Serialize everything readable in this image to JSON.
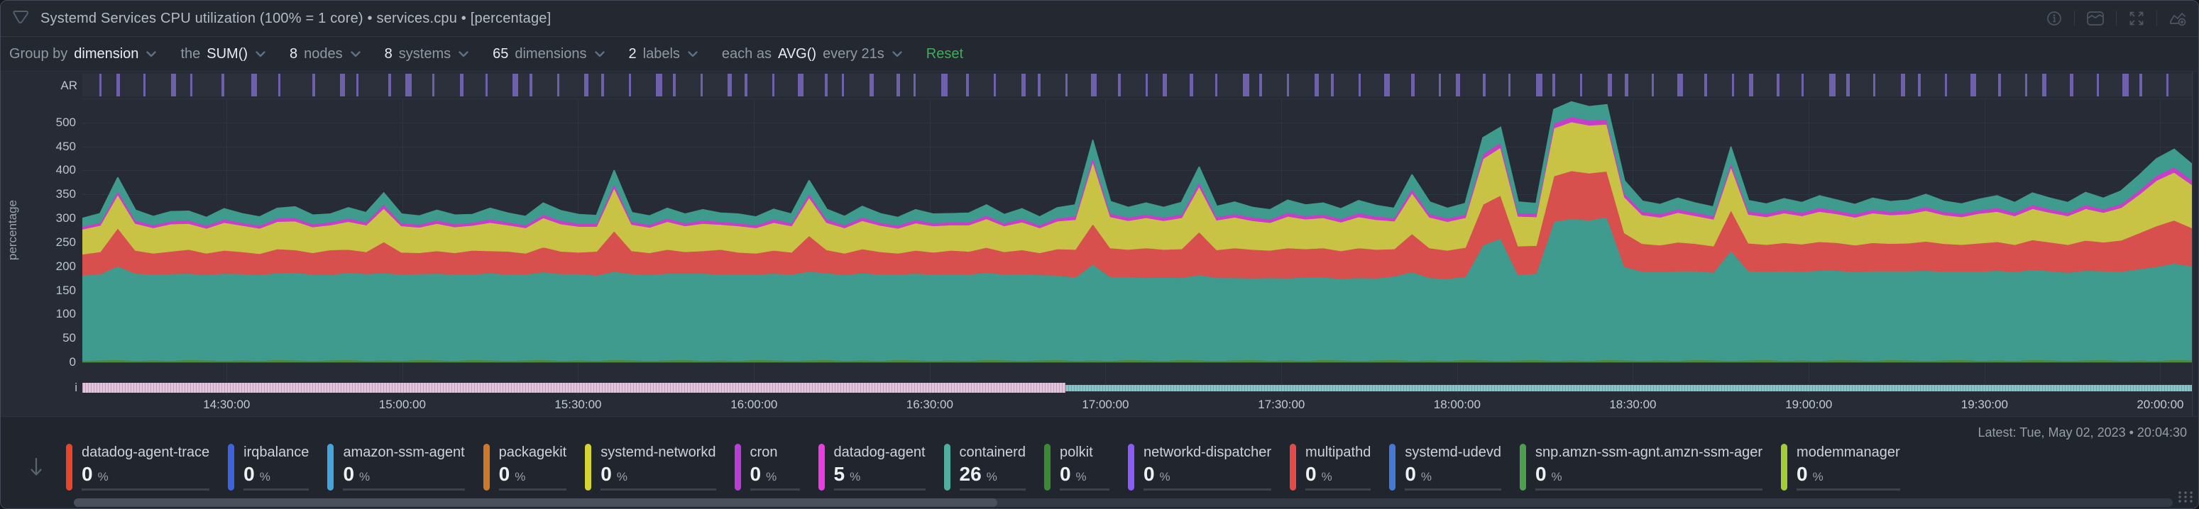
{
  "header": {
    "title": "Systemd Services CPU utilization (100% = 1 core) • services.cpu • [percentage]",
    "icons": [
      "netdata-logo",
      "info",
      "stacked-area",
      "fullscreen",
      "add-chart"
    ]
  },
  "toolbar": {
    "controls": [
      {
        "prefix": "Group by",
        "value": "dimension",
        "suffix": ""
      },
      {
        "prefix": "the",
        "value": "SUM()",
        "suffix": ""
      },
      {
        "prefix": "",
        "value": "8",
        "suffix": "nodes"
      },
      {
        "prefix": "",
        "value": "8",
        "suffix": "systems"
      },
      {
        "prefix": "",
        "value": "65",
        "suffix": "dimensions"
      },
      {
        "prefix": "",
        "value": "2",
        "suffix": "labels"
      },
      {
        "prefix": "each as",
        "value": "AVG()",
        "suffix": "every 21s"
      }
    ],
    "reset_label": "Reset"
  },
  "chart": {
    "ar_label": "AR",
    "info_label": "i",
    "y_axis_label": "percentage",
    "y_ticks": [
      500,
      450,
      400,
      350,
      300,
      250,
      200,
      150,
      100,
      50,
      0
    ],
    "y_grid": [
      550,
      500,
      450,
      400,
      350,
      300,
      250,
      200,
      150,
      100,
      50,
      0
    ],
    "x_ticks": [
      {
        "p": 6.84,
        "label": "14:30:00"
      },
      {
        "p": 15.17,
        "label": "15:00:00"
      },
      {
        "p": 23.5,
        "label": "15:30:00"
      },
      {
        "p": 31.84,
        "label": "16:00:00"
      },
      {
        "p": 40.17,
        "label": "16:30:00"
      },
      {
        "p": 48.5,
        "label": "17:00:00"
      },
      {
        "p": 56.84,
        "label": "17:30:00"
      },
      {
        "p": 65.17,
        "label": "18:00:00"
      },
      {
        "p": 73.5,
        "label": "18:30:00"
      },
      {
        "p": 81.84,
        "label": "19:00:00"
      },
      {
        "p": 90.17,
        "label": "19:30:00"
      },
      {
        "p": 98.5,
        "label": "20:00:00"
      }
    ],
    "info_bars": [
      {
        "name": "info-ribbon-pink",
        "color": "#e4c3e0",
        "width_pct": 46.6
      },
      {
        "name": "info-ribbon-cyan",
        "color": "#8ac6c9",
        "width_pct": 53.4
      }
    ],
    "colors": {
      "anomaly_bar": "#6e60aa",
      "grid": "#2e3542",
      "zero_line": "#3a4250"
    }
  },
  "chart_data": {
    "type": "stacked-area",
    "title": "Systemd Services CPU utilization",
    "unit": "percentage",
    "ylim": [
      0,
      550
    ],
    "x_start": "14:04:30",
    "x_end": "20:04:30",
    "legend_position": "bottom",
    "series": [
      {
        "name": "polkit",
        "color": "#4e8a3c",
        "values": [
          3,
          4,
          5,
          3,
          4,
          3,
          5,
          4,
          3,
          4,
          3,
          5,
          4,
          3,
          4,
          5,
          3,
          4,
          3,
          5,
          4,
          3,
          5,
          4,
          3,
          4,
          5,
          3,
          4,
          3,
          5,
          4,
          3,
          4,
          5,
          3,
          4,
          3,
          5,
          4,
          3,
          4,
          5,
          3,
          4,
          3,
          5,
          4,
          3,
          4,
          3,
          5,
          4,
          3,
          4,
          5,
          3,
          4,
          3,
          5,
          4,
          3,
          5,
          4,
          3,
          4,
          5,
          3,
          4,
          3,
          5,
          4,
          3,
          4,
          5,
          3,
          4,
          3,
          5,
          4,
          3,
          4,
          5,
          3,
          4,
          3,
          5,
          4,
          3,
          4,
          3,
          5,
          4,
          3,
          4,
          5,
          3,
          4,
          3,
          5,
          4,
          3,
          5,
          4,
          3,
          4,
          5,
          3,
          4,
          3,
          5,
          4,
          3,
          4,
          5,
          3,
          4,
          3,
          5,
          4
        ]
      },
      {
        "name": "containerd",
        "color": "#3f9b8d",
        "values": [
          178,
          180,
          195,
          182,
          179,
          181,
          180,
          178,
          182,
          180,
          179,
          181,
          183,
          180,
          178,
          182,
          181,
          182,
          180,
          179,
          181,
          180,
          178,
          182,
          180,
          179,
          183,
          181,
          180,
          178,
          184,
          180,
          179,
          181,
          180,
          182,
          179,
          180,
          178,
          181,
          180,
          185,
          181,
          179,
          182,
          180,
          178,
          181,
          180,
          179,
          180,
          182,
          179,
          181,
          178,
          176,
          174,
          200,
          175,
          173,
          172,
          174,
          171,
          178,
          173,
          172,
          170,
          173,
          171,
          174,
          172,
          170,
          173,
          171,
          174,
          185,
          172,
          171,
          173,
          240,
          255,
          178,
          180,
          290,
          295,
          293,
          298,
          195,
          186,
          184,
          187,
          185,
          183,
          230,
          186,
          184,
          187,
          185,
          188,
          186,
          184,
          187,
          185,
          186,
          188,
          185,
          184,
          186,
          187,
          185,
          188,
          186,
          184,
          187,
          185,
          186,
          190,
          196,
          201,
          196
        ]
      },
      {
        "name": "datadog-agent-trace",
        "color": "#d7504d",
        "values": [
          44,
          46,
          80,
          48,
          44,
          47,
          50,
          45,
          48,
          46,
          44,
          50,
          47,
          45,
          52,
          48,
          46,
          65,
          46,
          44,
          47,
          45,
          50,
          46,
          48,
          44,
          52,
          47,
          45,
          50,
          85,
          48,
          46,
          50,
          45,
          47,
          52,
          46,
          44,
          48,
          46,
          75,
          48,
          45,
          50,
          47,
          44,
          48,
          46,
          50,
          48,
          52,
          47,
          50,
          46,
          55,
          58,
          85,
          60,
          57,
          62,
          58,
          60,
          90,
          58,
          62,
          60,
          57,
          63,
          59,
          61,
          58,
          62,
          60,
          57,
          80,
          62,
          59,
          61,
          85,
          90,
          60,
          58,
          95,
          100,
          98,
          95,
          70,
          58,
          56,
          60,
          57,
          55,
          85,
          58,
          56,
          59,
          57,
          60,
          58,
          56,
          59,
          57,
          58,
          61,
          58,
          56,
          59,
          60,
          57,
          62,
          60,
          58,
          63,
          60,
          65,
          75,
          85,
          90,
          80
        ]
      },
      {
        "name": "systemd-networkd",
        "color": "#c8c345",
        "values": [
          52,
          55,
          70,
          56,
          53,
          57,
          54,
          52,
          58,
          55,
          53,
          57,
          60,
          54,
          52,
          58,
          56,
          70,
          55,
          53,
          57,
          54,
          52,
          59,
          55,
          53,
          61,
          57,
          54,
          52,
          90,
          55,
          53,
          58,
          54,
          57,
          52,
          55,
          53,
          58,
          55,
          80,
          57,
          53,
          59,
          55,
          52,
          57,
          55,
          53,
          55,
          60,
          54,
          58,
          52,
          58,
          62,
          130,
          65,
          60,
          63,
          60,
          65,
          95,
          62,
          64,
          60,
          58,
          66,
          62,
          63,
          60,
          65,
          62,
          58,
          85,
          64,
          60,
          62,
          95,
          100,
          62,
          60,
          100,
          102,
          100,
          98,
          75,
          60,
          58,
          62,
          58,
          56,
          90,
          60,
          58,
          62,
          59,
          63,
          60,
          58,
          62,
          60,
          61,
          64,
          60,
          58,
          62,
          63,
          60,
          65,
          62,
          60,
          66,
          62,
          68,
          80,
          95,
          100,
          90
        ]
      },
      {
        "name": "datadog-agent",
        "color": "#c93ec9",
        "values": [
          6,
          6,
          8,
          7,
          6,
          6,
          7,
          6,
          7,
          6,
          6,
          7,
          7,
          6,
          6,
          7,
          6,
          9,
          6,
          6,
          7,
          6,
          6,
          7,
          6,
          6,
          7,
          7,
          6,
          6,
          9,
          6,
          6,
          7,
          6,
          7,
          6,
          6,
          6,
          7,
          6,
          8,
          7,
          6,
          7,
          6,
          6,
          7,
          6,
          6,
          6,
          7,
          6,
          7,
          6,
          7,
          7,
          10,
          7,
          7,
          7,
          7,
          7,
          9,
          7,
          7,
          7,
          7,
          8,
          7,
          7,
          7,
          8,
          7,
          7,
          9,
          7,
          7,
          7,
          10,
          10,
          7,
          7,
          10,
          11,
          10,
          10,
          8,
          7,
          7,
          7,
          7,
          7,
          9,
          7,
          7,
          7,
          7,
          8,
          7,
          7,
          7,
          7,
          7,
          8,
          7,
          7,
          7,
          8,
          7,
          8,
          7,
          7,
          8,
          7,
          8,
          9,
          10,
          11,
          10
        ]
      },
      {
        "name": "amazon-ssm-agent",
        "color": "#3f9b8d",
        "values": [
          18,
          20,
          28,
          22,
          19,
          21,
          20,
          18,
          23,
          20,
          19,
          22,
          24,
          20,
          18,
          23,
          21,
          24,
          20,
          19,
          22,
          20,
          18,
          24,
          20,
          19,
          25,
          22,
          20,
          18,
          28,
          20,
          19,
          22,
          20,
          23,
          19,
          20,
          18,
          22,
          20,
          28,
          22,
          19,
          24,
          20,
          18,
          22,
          20,
          19,
          20,
          23,
          19,
          22,
          18,
          22,
          25,
          35,
          26,
          22,
          25,
          22,
          26,
          32,
          23,
          26,
          22,
          21,
          27,
          24,
          25,
          22,
          27,
          24,
          21,
          30,
          26,
          22,
          24,
          35,
          33,
          24,
          22,
          30,
          32,
          30,
          32,
          27,
          23,
          21,
          24,
          21,
          20,
          33,
          23,
          21,
          24,
          22,
          26,
          23,
          21,
          25,
          22,
          23,
          27,
          23,
          21,
          24,
          26,
          22,
          26,
          24,
          22,
          27,
          24,
          28,
          32,
          36,
          38,
          34
        ]
      }
    ],
    "anomaly_bars": [
      [
        0.8,
        3
      ],
      [
        1.6,
        5
      ],
      [
        2.9,
        3
      ],
      [
        4.2,
        7
      ],
      [
        5.1,
        3
      ],
      [
        6.6,
        4
      ],
      [
        8.0,
        8
      ],
      [
        9.3,
        3
      ],
      [
        10.9,
        4
      ],
      [
        12.2,
        7
      ],
      [
        13.0,
        3
      ],
      [
        14.5,
        4
      ],
      [
        15.3,
        9
      ],
      [
        16.6,
        3
      ],
      [
        17.9,
        5
      ],
      [
        19.1,
        3
      ],
      [
        20.4,
        8
      ],
      [
        21.2,
        4
      ],
      [
        22.5,
        3
      ],
      [
        23.8,
        6
      ],
      [
        24.6,
        4
      ],
      [
        25.9,
        3
      ],
      [
        27.2,
        9
      ],
      [
        28.0,
        4
      ],
      [
        29.3,
        3
      ],
      [
        30.6,
        6
      ],
      [
        31.4,
        4
      ],
      [
        32.7,
        3
      ],
      [
        33.9,
        8
      ],
      [
        35.2,
        4
      ],
      [
        36.0,
        3
      ],
      [
        37.3,
        6
      ],
      [
        38.6,
        5
      ],
      [
        39.4,
        3
      ],
      [
        40.7,
        9
      ],
      [
        41.9,
        4
      ],
      [
        43.2,
        3
      ],
      [
        44.5,
        6
      ],
      [
        45.3,
        4
      ],
      [
        46.6,
        3
      ],
      [
        47.8,
        8
      ],
      [
        49.1,
        4
      ],
      [
        50.4,
        3
      ],
      [
        51.2,
        6
      ],
      [
        52.5,
        5
      ],
      [
        53.7,
        3
      ],
      [
        55.0,
        9
      ],
      [
        55.8,
        4
      ],
      [
        57.1,
        3
      ],
      [
        58.4,
        6
      ],
      [
        59.2,
        4
      ],
      [
        60.5,
        3
      ],
      [
        61.7,
        8
      ],
      [
        63.0,
        5
      ],
      [
        64.3,
        3
      ],
      [
        65.1,
        6
      ],
      [
        66.4,
        4
      ],
      [
        67.6,
        3
      ],
      [
        68.9,
        9
      ],
      [
        69.7,
        4
      ],
      [
        71.0,
        3
      ],
      [
        72.3,
        6
      ],
      [
        73.1,
        5
      ],
      [
        74.4,
        3
      ],
      [
        75.6,
        8
      ],
      [
        76.9,
        4
      ],
      [
        78.2,
        3
      ],
      [
        79.0,
        6
      ],
      [
        80.3,
        4
      ],
      [
        81.5,
        3
      ],
      [
        82.8,
        9
      ],
      [
        83.6,
        5
      ],
      [
        84.9,
        3
      ],
      [
        86.2,
        6
      ],
      [
        87.0,
        4
      ],
      [
        88.3,
        3
      ],
      [
        89.5,
        8
      ],
      [
        90.8,
        4
      ],
      [
        92.1,
        3
      ],
      [
        92.9,
        6
      ],
      [
        94.2,
        5
      ],
      [
        95.5,
        3
      ],
      [
        96.7,
        9
      ],
      [
        97.5,
        4
      ],
      [
        98.8,
        3
      ]
    ]
  },
  "footer": {
    "latest": "Latest: Tue, May 02, 2023 • 20:04:30",
    "scroll_thumb_pct": 44
  },
  "legend": {
    "items": [
      {
        "name": "datadog-agent-trace",
        "value": "0",
        "unit": "%",
        "color": "#e8452c"
      },
      {
        "name": "irqbalance",
        "value": "0",
        "unit": "%",
        "color": "#3e63dd"
      },
      {
        "name": "amazon-ssm-agent",
        "value": "0",
        "unit": "%",
        "color": "#46a4da"
      },
      {
        "name": "packagekit",
        "value": "0",
        "unit": "%",
        "color": "#cc7a29"
      },
      {
        "name": "systemd-networkd",
        "value": "0",
        "unit": "%",
        "color": "#d6d334"
      },
      {
        "name": "cron",
        "value": "0",
        "unit": "%",
        "color": "#b93fd4"
      },
      {
        "name": "datadog-agent",
        "value": "5",
        "unit": "%",
        "color": "#e93fe0"
      },
      {
        "name": "containerd",
        "value": "26",
        "unit": "%",
        "color": "#4fae9d"
      },
      {
        "name": "polkit",
        "value": "0",
        "unit": "%",
        "color": "#3a8a33"
      },
      {
        "name": "networkd-dispatcher",
        "value": "0",
        "unit": "%",
        "color": "#8b5cf6"
      },
      {
        "name": "multipathd",
        "value": "0",
        "unit": "%",
        "color": "#e44a4a"
      },
      {
        "name": "systemd-udevd",
        "value": "0",
        "unit": "%",
        "color": "#4479d4"
      },
      {
        "name": "snp.amzn-ssm-agnt.amzn-ssm-ager",
        "value": "0",
        "unit": "%",
        "color": "#4e9e50"
      },
      {
        "name": "modemmanager",
        "value": "0",
        "unit": "%",
        "color": "#a3cc39"
      }
    ]
  }
}
